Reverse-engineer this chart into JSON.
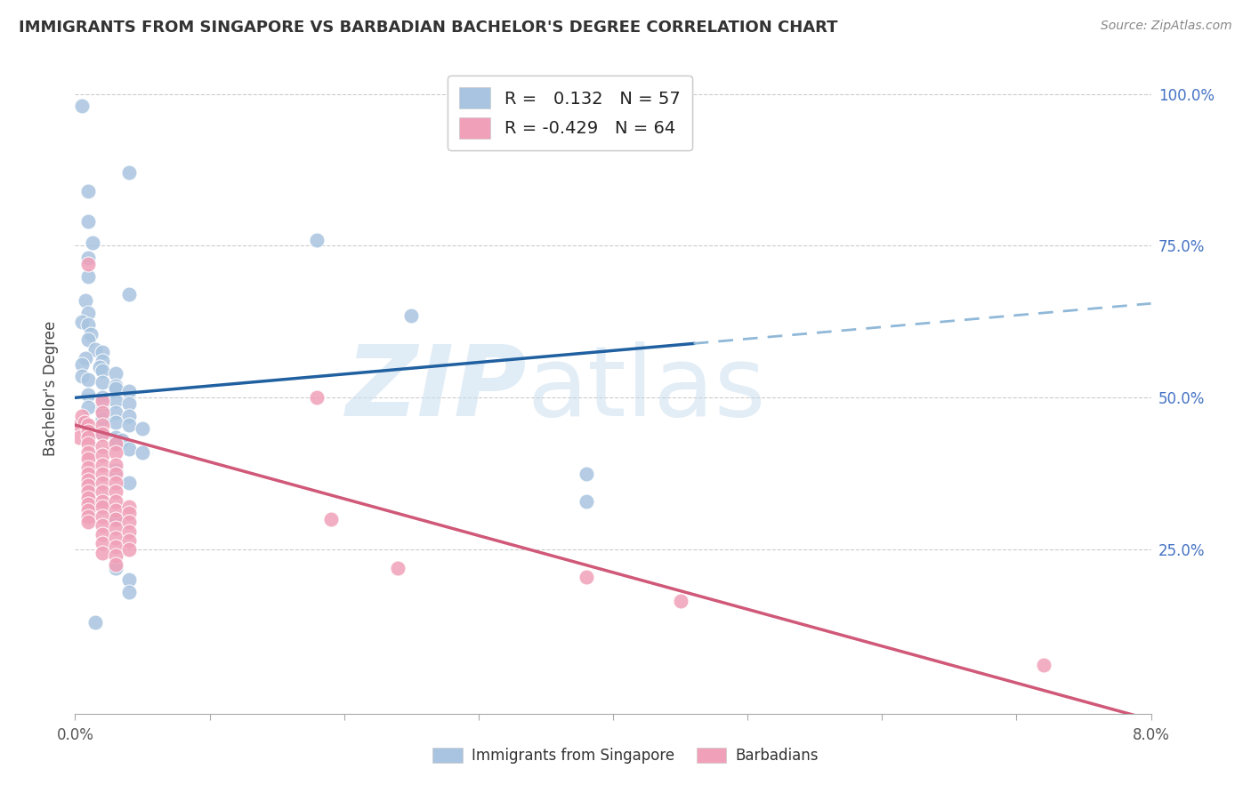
{
  "title": "IMMIGRANTS FROM SINGAPORE VS BARBADIAN BACHELOR'S DEGREE CORRELATION CHART",
  "source": "Source: ZipAtlas.com",
  "ylabel": "Bachelor's Degree",
  "legend_label1": "Immigrants from Singapore",
  "legend_label2": "Barbadians",
  "r1": 0.132,
  "n1": 57,
  "r2": -0.429,
  "n2": 64,
  "color_blue": "#a8c4e0",
  "color_pink": "#f0a0b8",
  "line_blue": "#2060a0",
  "line_pink": "#d05878",
  "line_dashed_color": "#90b8d8",
  "background": "#ffffff",
  "blue_scatter": [
    [
      0.0005,
      0.98
    ],
    [
      0.001,
      0.84
    ],
    [
      0.001,
      0.79
    ],
    [
      0.0013,
      0.755
    ],
    [
      0.001,
      0.73
    ],
    [
      0.001,
      0.7
    ],
    [
      0.0008,
      0.66
    ],
    [
      0.001,
      0.64
    ],
    [
      0.0005,
      0.625
    ],
    [
      0.001,
      0.62
    ],
    [
      0.0012,
      0.605
    ],
    [
      0.001,
      0.595
    ],
    [
      0.0015,
      0.58
    ],
    [
      0.002,
      0.575
    ],
    [
      0.0008,
      0.565
    ],
    [
      0.002,
      0.56
    ],
    [
      0.0005,
      0.555
    ],
    [
      0.0018,
      0.55
    ],
    [
      0.002,
      0.545
    ],
    [
      0.003,
      0.54
    ],
    [
      0.0005,
      0.535
    ],
    [
      0.001,
      0.53
    ],
    [
      0.002,
      0.525
    ],
    [
      0.003,
      0.52
    ],
    [
      0.003,
      0.515
    ],
    [
      0.004,
      0.51
    ],
    [
      0.001,
      0.505
    ],
    [
      0.002,
      0.5
    ],
    [
      0.003,
      0.495
    ],
    [
      0.004,
      0.49
    ],
    [
      0.001,
      0.485
    ],
    [
      0.002,
      0.48
    ],
    [
      0.003,
      0.475
    ],
    [
      0.004,
      0.47
    ],
    [
      0.002,
      0.465
    ],
    [
      0.003,
      0.46
    ],
    [
      0.004,
      0.455
    ],
    [
      0.005,
      0.45
    ],
    [
      0.002,
      0.44
    ],
    [
      0.003,
      0.435
    ],
    [
      0.0035,
      0.43
    ],
    [
      0.003,
      0.425
    ],
    [
      0.004,
      0.415
    ],
    [
      0.005,
      0.41
    ],
    [
      0.003,
      0.38
    ],
    [
      0.004,
      0.36
    ],
    [
      0.003,
      0.3
    ],
    [
      0.003,
      0.22
    ],
    [
      0.004,
      0.2
    ],
    [
      0.004,
      0.18
    ],
    [
      0.018,
      0.76
    ],
    [
      0.025,
      0.635
    ],
    [
      0.038,
      0.375
    ],
    [
      0.038,
      0.33
    ],
    [
      0.004,
      0.87
    ],
    [
      0.004,
      0.67
    ],
    [
      0.0015,
      0.13
    ]
  ],
  "pink_scatter": [
    [
      0.0003,
      0.455
    ],
    [
      0.0003,
      0.435
    ],
    [
      0.0005,
      0.47
    ],
    [
      0.0007,
      0.46
    ],
    [
      0.001,
      0.455
    ],
    [
      0.001,
      0.445
    ],
    [
      0.001,
      0.435
    ],
    [
      0.001,
      0.425
    ],
    [
      0.001,
      0.41
    ],
    [
      0.001,
      0.4
    ],
    [
      0.001,
      0.385
    ],
    [
      0.001,
      0.375
    ],
    [
      0.001,
      0.365
    ],
    [
      0.001,
      0.355
    ],
    [
      0.001,
      0.345
    ],
    [
      0.001,
      0.335
    ],
    [
      0.001,
      0.325
    ],
    [
      0.001,
      0.315
    ],
    [
      0.001,
      0.305
    ],
    [
      0.001,
      0.295
    ],
    [
      0.001,
      0.72
    ],
    [
      0.002,
      0.495
    ],
    [
      0.002,
      0.475
    ],
    [
      0.002,
      0.455
    ],
    [
      0.002,
      0.44
    ],
    [
      0.002,
      0.42
    ],
    [
      0.002,
      0.405
    ],
    [
      0.002,
      0.39
    ],
    [
      0.002,
      0.375
    ],
    [
      0.002,
      0.36
    ],
    [
      0.002,
      0.345
    ],
    [
      0.002,
      0.33
    ],
    [
      0.002,
      0.32
    ],
    [
      0.002,
      0.305
    ],
    [
      0.002,
      0.29
    ],
    [
      0.002,
      0.275
    ],
    [
      0.002,
      0.26
    ],
    [
      0.002,
      0.245
    ],
    [
      0.003,
      0.425
    ],
    [
      0.003,
      0.41
    ],
    [
      0.003,
      0.39
    ],
    [
      0.003,
      0.375
    ],
    [
      0.003,
      0.36
    ],
    [
      0.003,
      0.345
    ],
    [
      0.003,
      0.33
    ],
    [
      0.003,
      0.315
    ],
    [
      0.003,
      0.3
    ],
    [
      0.003,
      0.285
    ],
    [
      0.003,
      0.27
    ],
    [
      0.003,
      0.255
    ],
    [
      0.003,
      0.24
    ],
    [
      0.003,
      0.225
    ],
    [
      0.004,
      0.32
    ],
    [
      0.004,
      0.31
    ],
    [
      0.004,
      0.295
    ],
    [
      0.004,
      0.28
    ],
    [
      0.004,
      0.265
    ],
    [
      0.004,
      0.25
    ],
    [
      0.018,
      0.5
    ],
    [
      0.019,
      0.3
    ],
    [
      0.024,
      0.22
    ],
    [
      0.038,
      0.205
    ],
    [
      0.045,
      0.165
    ],
    [
      0.072,
      0.06
    ]
  ],
  "xlim": [
    0.0,
    0.08
  ],
  "ylim": [
    -0.02,
    1.05
  ],
  "x_ticks": [
    0.0,
    0.08
  ],
  "x_tick_labels": [
    "0.0%",
    "8.0%"
  ],
  "y_ticks": [
    0.25,
    0.5,
    0.75,
    1.0
  ],
  "y_tick_labels": [
    "25.0%",
    "50.0%",
    "75.0%",
    "100.0%"
  ],
  "blue_line_y0": 0.5,
  "blue_line_y1": 0.655,
  "blue_line_x0": 0.0,
  "blue_line_x1": 0.08,
  "pink_line_y0": 0.455,
  "pink_line_y1": -0.03,
  "pink_line_x0": 0.0,
  "pink_line_x1": 0.08
}
